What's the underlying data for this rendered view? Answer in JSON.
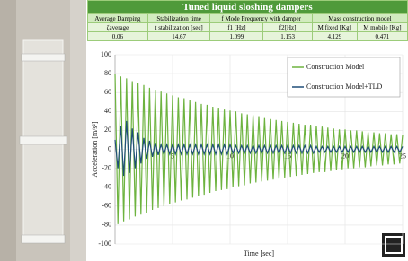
{
  "table": {
    "title": "Tuned liquid sloshing dampers",
    "header": [
      "Average Damping",
      "Stabilization time",
      "f Mode Frequency  with damper",
      "Mass construction model"
    ],
    "subheader": [
      "ζaverage",
      "t stabilization [sec]",
      "f1 [Hz]",
      "f2[Hz]",
      "M fixed [Kg]",
      "M mobile [Kg]"
    ],
    "row": [
      "0.06",
      "14.67",
      "1.099",
      "1.153",
      "4.129",
      "0.471"
    ]
  },
  "chart_data": {
    "type": "line",
    "y_label": "Acceleration [m/s²]",
    "x_label": "Time [sec]",
    "xlim": [
      0,
      25
    ],
    "xticks": [
      5,
      10,
      15,
      20,
      25
    ],
    "ylim": [
      -100,
      100
    ],
    "yticks": [
      100,
      80,
      60,
      40,
      20,
      0,
      -20,
      -40,
      -60,
      -80,
      -100
    ],
    "grid": true,
    "legend": "upper right",
    "x": [
      0,
      0.25,
      0.5,
      0.75,
      1,
      1.25,
      1.5,
      1.75,
      2,
      2.25,
      2.5,
      2.75,
      3,
      3.25,
      3.5,
      3.75,
      4,
      4.25,
      4.5,
      4.75,
      5,
      5.25,
      5.5,
      5.75,
      6,
      6.25,
      6.5,
      6.75,
      7,
      7.25,
      7.5,
      7.75,
      8,
      8.25,
      8.5,
      8.75,
      9,
      9.25,
      9.5,
      9.75,
      10,
      10.25,
      10.5,
      10.75,
      11,
      11.25,
      11.5,
      11.75,
      12,
      12.25,
      12.5,
      12.75,
      13,
      13.25,
      13.5,
      13.75,
      14,
      14.25,
      14.5,
      14.75,
      15,
      15.25,
      15.5,
      15.75,
      16,
      16.25,
      16.5,
      16.75,
      17,
      17.25,
      17.5,
      17.75,
      18,
      18.25,
      18.5,
      18.75,
      19,
      19.25,
      19.5,
      19.75,
      20,
      20.25,
      20.5,
      20.75,
      21,
      21.25,
      21.5,
      21.75,
      22,
      22.25,
      22.5,
      22.75,
      23,
      23.25,
      23.5,
      23.75,
      24,
      24.25,
      24.5,
      24.75,
      25
    ],
    "series": [
      {
        "name": "Construction Model",
        "color": "#6db33f",
        "values": [
          80,
          -79,
          77,
          -76,
          75,
          -74,
          72,
          -71,
          70,
          -69,
          68,
          -67,
          65,
          -64,
          63,
          -62,
          61,
          -60,
          59,
          -58,
          57,
          -56,
          55,
          -54,
          54,
          -53,
          52,
          -51,
          50,
          -49,
          48,
          -48,
          47,
          -46,
          45,
          -44,
          44,
          -43,
          42,
          -42,
          41,
          -40,
          40,
          -39,
          38,
          -38,
          37,
          -36,
          36,
          -35,
          35,
          -34,
          33,
          -33,
          32,
          -32,
          31,
          -31,
          30,
          -30,
          29,
          -29,
          28,
          -28,
          27,
          -27,
          26,
          -26,
          26,
          -25,
          25,
          -24,
          24,
          -24,
          23,
          -23,
          22,
          -22,
          21,
          -21,
          21,
          -20,
          20,
          -20,
          20,
          -19,
          19,
          -19,
          18,
          -18,
          18,
          -17,
          17,
          -17,
          17,
          -16,
          16,
          -16,
          16,
          -15,
          15
        ]
      },
      {
        "name": "Construction Model+TLD",
        "color": "#1f4e79",
        "values": [
          10,
          -20,
          25,
          -28,
          30,
          -25,
          22,
          -20,
          18,
          -15,
          12,
          -10,
          9,
          -8,
          7,
          -6,
          5,
          -5,
          5,
          -5,
          5,
          -5,
          5,
          -5,
          5,
          -5,
          5,
          -5,
          5,
          -5,
          5,
          -5,
          5,
          -5,
          5,
          -5,
          5,
          -5,
          5,
          -5,
          5,
          -4,
          4,
          -4,
          4,
          -4,
          4,
          -4,
          4,
          -4,
          4,
          -4,
          4,
          -4,
          4,
          -4,
          4,
          -4,
          4,
          -4,
          4,
          -4,
          4,
          -4,
          4,
          -4,
          4,
          -4,
          4,
          -4,
          3,
          -3,
          3,
          -3,
          3,
          -3,
          3,
          -3,
          3,
          -3,
          3,
          -3,
          3,
          -3,
          3,
          -3,
          3,
          -3,
          3,
          -3,
          3,
          -3,
          3,
          -3,
          3,
          -3,
          3,
          -3,
          3,
          -3,
          3
        ]
      }
    ]
  }
}
